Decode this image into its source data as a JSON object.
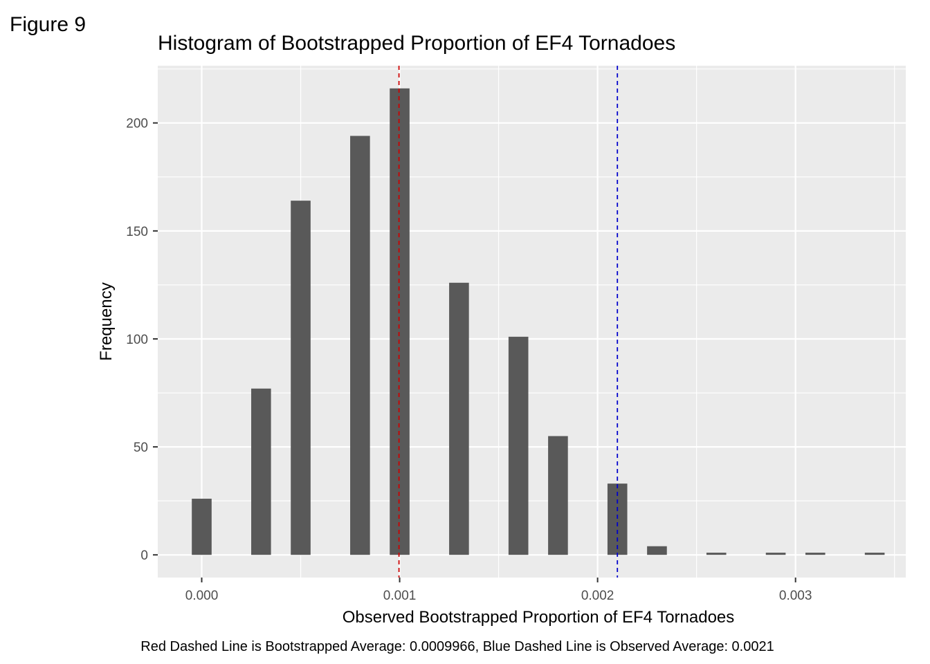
{
  "figure_label": "Figure 9",
  "caption": "Red Dashed Line is Bootstrapped Average: 0.0009966, Blue Dashed Line is Observed Average: 0.0021",
  "colors": {
    "panel": "#ebebeb",
    "grid": "#ffffff",
    "bar": "#595959",
    "red_line": "#cc0000",
    "blue_line": "#0000cc"
  },
  "chart_data": {
    "type": "bar",
    "title": "Histogram of Bootstrapped Proportion of EF4 Tornadoes",
    "xlabel": "Observed Bootstrapped Proportion of EF4 Tornadoes",
    "ylabel": "Frequency",
    "xlim": [
      -0.000222,
      0.003557
    ],
    "ylim": [
      -10.5,
      226.5
    ],
    "grid": true,
    "bin_width": 0.0001,
    "x_ticks": [
      0.0,
      0.001,
      0.002,
      0.003
    ],
    "x_tick_labels": [
      "0.000",
      "0.001",
      "0.002",
      "0.003"
    ],
    "y_ticks": [
      0,
      50,
      100,
      150,
      200
    ],
    "y_tick_labels": [
      "0",
      "50",
      "100",
      "150",
      "200"
    ],
    "bars": [
      {
        "x": 0.0,
        "value": 26
      },
      {
        "x": 0.0003,
        "value": 77
      },
      {
        "x": 0.0005,
        "value": 164
      },
      {
        "x": 0.0008,
        "value": 194
      },
      {
        "x": 0.001,
        "value": 216
      },
      {
        "x": 0.0013,
        "value": 126
      },
      {
        "x": 0.0016,
        "value": 101
      },
      {
        "x": 0.0018,
        "value": 55
      },
      {
        "x": 0.0021,
        "value": 33
      },
      {
        "x": 0.0023,
        "value": 4
      },
      {
        "x": 0.0026,
        "value": 1
      },
      {
        "x": 0.0029,
        "value": 1
      },
      {
        "x": 0.0031,
        "value": 1
      },
      {
        "x": 0.0034,
        "value": 1
      }
    ],
    "reference_lines": [
      {
        "label": "Bootstrapped Average",
        "x": 0.0009966,
        "color": "#cc0000",
        "style": "dashed"
      },
      {
        "label": "Observed Average",
        "x": 0.0021,
        "color": "#0000cc",
        "style": "dashed"
      }
    ]
  }
}
